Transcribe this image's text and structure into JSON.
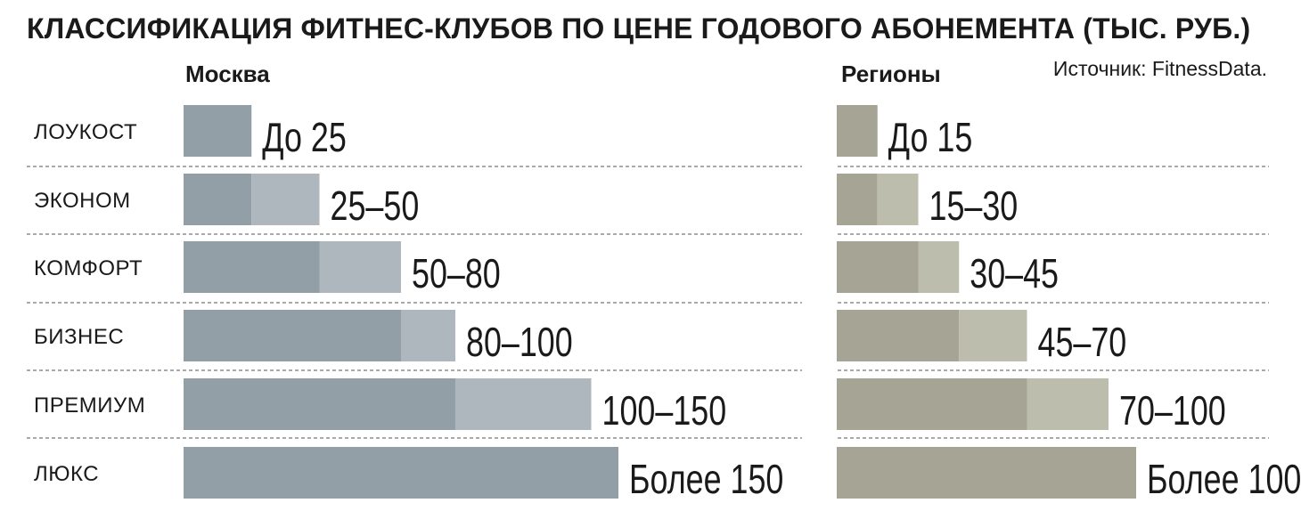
{
  "title": "КЛАССИФИКАЦИЯ ФИТНЕС-КЛУБОВ ПО ЦЕНЕ ГОДОВОГО АБОНЕМЕНТА (ТЫС. РУБ.)",
  "source": "Источник: FitnessData.",
  "chart_data": [
    {
      "type": "bar",
      "title": "Москва",
      "categories": [
        "ЛОУКОСТ",
        "ЭКОНОМ",
        "КОМФОРТ",
        "БИЗНЕС",
        "ПРЕМИУМ",
        "ЛЮКС"
      ],
      "ranges": [
        [
          0,
          25
        ],
        [
          25,
          50
        ],
        [
          50,
          80
        ],
        [
          80,
          100
        ],
        [
          100,
          150
        ],
        [
          150,
          160
        ]
      ],
      "value_labels": [
        "До 25",
        "25–50",
        "50–80",
        "80–100",
        "100–150",
        "Более 150"
      ],
      "colors": {
        "dark": "#929fa6",
        "light": "#aeb7bd"
      }
    },
    {
      "type": "bar",
      "title": "Регионы",
      "categories": [
        "ЛОУКОСТ",
        "ЭКОНОМ",
        "КОМФОРТ",
        "БИЗНЕС",
        "ПРЕМИУМ",
        "ЛЮКС"
      ],
      "ranges": [
        [
          0,
          15
        ],
        [
          15,
          30
        ],
        [
          30,
          45
        ],
        [
          45,
          70
        ],
        [
          70,
          100
        ],
        [
          100,
          110
        ]
      ],
      "value_labels": [
        "До 15",
        "15–30",
        "30–45",
        "45–70",
        "70–100",
        "Более 100"
      ],
      "colors": {
        "dark": "#a6a595",
        "light": "#bdbdae"
      }
    }
  ]
}
